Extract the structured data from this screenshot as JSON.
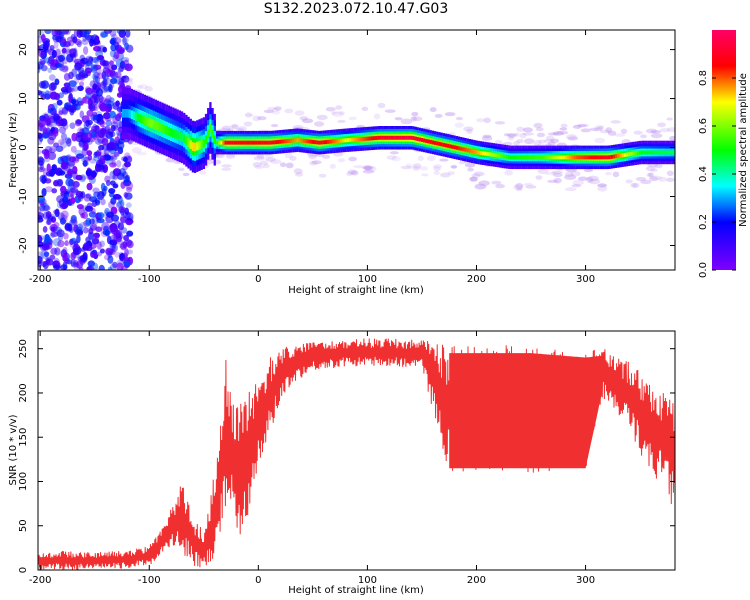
{
  "title": "S132.2023.072.10.47.G03",
  "colors": {
    "snr_line": "#f03030",
    "axis": "#000000"
  },
  "chart_data": [
    {
      "type": "heatmap",
      "xlabel": "Height of straight line (km)",
      "ylabel": "Frequency (Hz)",
      "xlim": [
        -202,
        382
      ],
      "ylim": [
        -25,
        24
      ],
      "x_ticks": [
        -200,
        -100,
        0,
        100,
        200,
        300
      ],
      "y_ticks": [
        -20,
        -10,
        0,
        10,
        20
      ],
      "colorbar": {
        "label": "Normalized spectral amplitude",
        "range": [
          0,
          1
        ],
        "ticks": [
          "0.0",
          "0.2",
          "0.4",
          "0.6",
          "0.8"
        ],
        "tick_values": [
          0,
          0.2,
          0.4,
          0.6,
          0.8
        ],
        "colormap": "hsv"
      },
      "ridge": [
        {
          "x": -120,
          "y": 7,
          "a": 0.3
        },
        {
          "x": -110,
          "y": 6,
          "a": 0.5
        },
        {
          "x": -100,
          "y": 5,
          "a": 0.6
        },
        {
          "x": -90,
          "y": 4,
          "a": 0.55
        },
        {
          "x": -80,
          "y": 3,
          "a": 0.5
        },
        {
          "x": -70,
          "y": 2,
          "a": 0.45
        },
        {
          "x": -60,
          "y": 0,
          "a": 0.75
        },
        {
          "x": -50,
          "y": 1,
          "a": 0.5
        },
        {
          "x": -45,
          "y": 4,
          "a": 0.55
        },
        {
          "x": -40,
          "y": 1,
          "a": 0.5
        },
        {
          "x": -30,
          "y": 1,
          "a": 0.9
        },
        {
          "x": -10,
          "y": 1,
          "a": 0.85
        },
        {
          "x": 10,
          "y": 1,
          "a": 0.9
        },
        {
          "x": 35,
          "y": 1.5,
          "a": 0.75
        },
        {
          "x": 55,
          "y": 1,
          "a": 0.9
        },
        {
          "x": 80,
          "y": 1.5,
          "a": 0.7
        },
        {
          "x": 110,
          "y": 2,
          "a": 0.9
        },
        {
          "x": 140,
          "y": 2,
          "a": 0.95
        },
        {
          "x": 160,
          "y": 1,
          "a": 0.85
        },
        {
          "x": 180,
          "y": 0,
          "a": 0.85
        },
        {
          "x": 200,
          "y": -1,
          "a": 0.75
        },
        {
          "x": 230,
          "y": -2,
          "a": 0.5
        },
        {
          "x": 260,
          "y": -2,
          "a": 0.55
        },
        {
          "x": 290,
          "y": -2,
          "a": 0.8
        },
        {
          "x": 320,
          "y": -2,
          "a": 0.9
        },
        {
          "x": 350,
          "y": -1,
          "a": 0.5
        },
        {
          "x": 382,
          "y": -1,
          "a": 0.45
        }
      ]
    },
    {
      "type": "line",
      "xlabel": "Height of straight line (km)",
      "ylabel": "SNR (10 * v/v)",
      "xlim": [
        -202,
        382
      ],
      "ylim": [
        0,
        270
      ],
      "x_ticks": [
        -200,
        -100,
        0,
        100,
        200,
        300
      ],
      "y_ticks": [
        0,
        50,
        100,
        150,
        200,
        250
      ],
      "series": [
        {
          "x": [
            -202,
            -180,
            -150,
            -120,
            -100,
            -90,
            -80,
            -70,
            -60,
            -50,
            -45,
            -40,
            -35,
            -30,
            -25,
            -20,
            -10,
            0,
            10,
            20,
            30,
            50,
            80,
            100,
            120,
            150,
            175,
            200,
            250,
            300,
            315,
            340,
            360,
            370,
            382
          ],
          "y": [
            10,
            10,
            11,
            13,
            18,
            28,
            45,
            60,
            35,
            20,
            40,
            70,
            100,
            140,
            150,
            120,
            150,
            180,
            210,
            230,
            240,
            248,
            250,
            250,
            248,
            250,
            245,
            235,
            230,
            230,
            230,
            220,
            200,
            180,
            170
          ],
          "y_low": [
            0,
            0,
            0,
            2,
            5,
            15,
            25,
            20,
            5,
            0,
            5,
            15,
            40,
            60,
            80,
            30,
            60,
            110,
            150,
            190,
            210,
            225,
            230,
            230,
            230,
            228,
            110,
            110,
            110,
            110,
            195,
            160,
            105,
            100,
            60
          ],
          "y_high": [
            20,
            22,
            20,
            22,
            28,
            45,
            70,
            100,
            60,
            45,
            70,
            120,
            165,
            250,
            205,
            190,
            200,
            220,
            240,
            250,
            255,
            258,
            260,
            262,
            262,
            260,
            255,
            255,
            255,
            250,
            252,
            235,
            215,
            205,
            200
          ]
        }
      ]
    }
  ]
}
